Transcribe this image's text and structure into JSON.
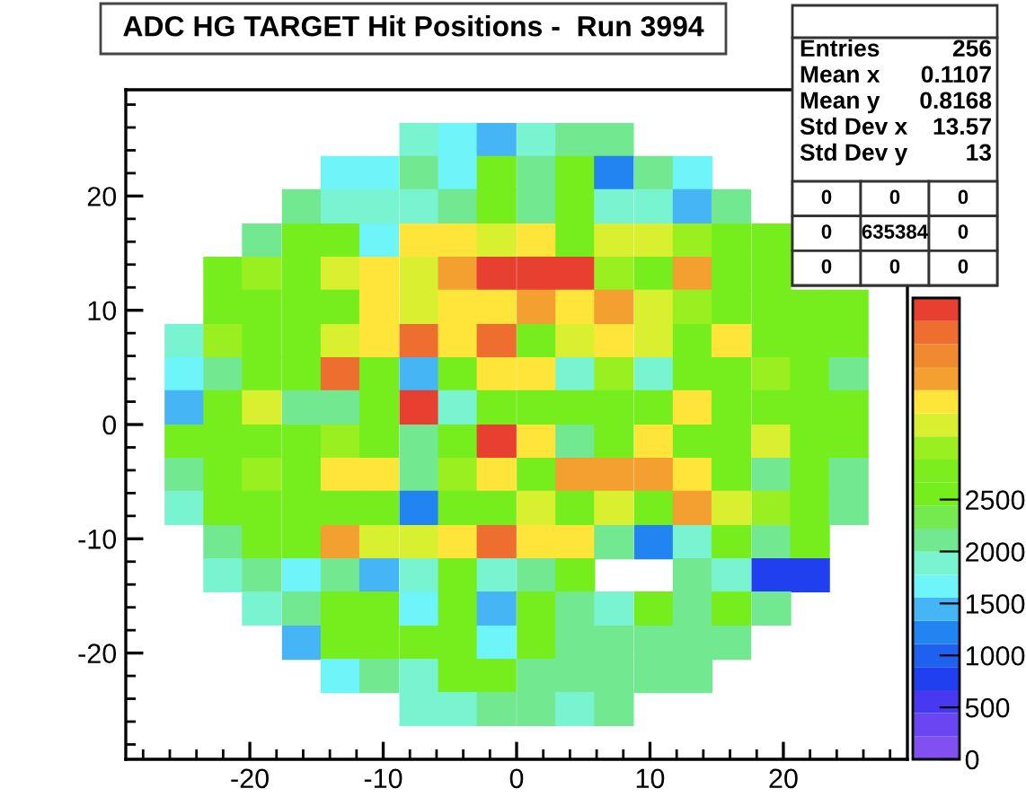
{
  "chart_data": {
    "type": "scatter",
    "title": "ADC HG TARGET Hit Positions -  Run 3994",
    "marker": "square",
    "xlim": [
      -29.3,
      29.3
    ],
    "ylim": [
      -29.3,
      29.3
    ],
    "xticks": [
      -20,
      -10,
      0,
      10,
      20
    ],
    "yticks": [
      -20,
      -10,
      0,
      10,
      20
    ],
    "clim": [
      0,
      4440
    ],
    "cticks": [
      0,
      500,
      1000,
      1500,
      2000,
      2500
    ],
    "x": [
      -7.3,
      -4.4,
      -1.5,
      1.5,
      4.4,
      7.3,
      -13.2,
      -10.3,
      -7.3,
      -4.4,
      -1.5,
      1.5,
      4.4,
      7.3,
      10.3,
      13.2,
      -16.1,
      -13.2,
      -10.3,
      -7.3,
      -4.4,
      -1.5,
      1.5,
      4.4,
      7.3,
      10.3,
      13.2,
      16.1,
      -19.1,
      -16.1,
      -13.2,
      -10.3,
      -7.3,
      -4.4,
      -1.5,
      1.5,
      4.4,
      7.3,
      10.3,
      13.2,
      16.1,
      19.1,
      -22.0,
      -19.1,
      -16.1,
      -13.2,
      -10.3,
      -7.3,
      -4.4,
      -1.5,
      1.5,
      4.4,
      7.3,
      10.3,
      13.2,
      16.1,
      19.1,
      -22.0,
      -19.1,
      -16.1,
      -13.2,
      -10.3,
      -7.3,
      -4.4,
      -1.5,
      1.5,
      4.4,
      7.3,
      10.3,
      13.2,
      16.1,
      19.1,
      22.0,
      24.9,
      -24.9,
      -22.0,
      -19.1,
      -16.1,
      -13.2,
      -10.3,
      -7.3,
      -4.4,
      -1.5,
      1.5,
      4.4,
      7.3,
      10.3,
      13.2,
      16.1,
      19.1,
      22.0,
      24.9,
      -24.9,
      -22.0,
      -19.1,
      -16.1,
      -13.2,
      -10.3,
      -7.3,
      -4.4,
      -1.5,
      1.5,
      4.4,
      7.3,
      10.3,
      13.2,
      16.1,
      19.1,
      22.0,
      24.9,
      -24.9,
      -22.0,
      -19.1,
      -16.1,
      -13.2,
      -10.3,
      -7.3,
      -4.4,
      -1.5,
      1.5,
      4.4,
      7.3,
      10.3,
      13.2,
      16.1,
      19.1,
      22.0,
      24.9,
      -24.9,
      -22.0,
      -19.1,
      -16.1,
      -13.2,
      -10.3,
      -7.3,
      -4.4,
      -1.5,
      1.5,
      4.4,
      7.3,
      10.3,
      13.2,
      16.1,
      19.1,
      22.0,
      24.9,
      -24.9,
      -22.0,
      -19.1,
      -16.1,
      -13.2,
      -10.3,
      -7.3,
      -4.4,
      -1.5,
      1.5,
      4.4,
      7.3,
      10.3,
      13.2,
      16.1,
      19.1,
      22.0,
      24.9,
      -24.9,
      -22.0,
      -19.1,
      -16.1,
      -13.2,
      -10.3,
      -7.3,
      -4.4,
      -1.5,
      1.5,
      4.4,
      7.3,
      10.3,
      13.2,
      16.1,
      19.1,
      22.0,
      24.9,
      -22.0,
      -19.1,
      -16.1,
      -13.2,
      -10.3,
      -7.3,
      -4.4,
      -1.5,
      1.5,
      4.4,
      7.3,
      10.3,
      13.2,
      16.1,
      19.1,
      22.0,
      -22.0,
      -19.1,
      -16.1,
      -13.2,
      -10.3,
      -7.3,
      -4.4,
      -1.5,
      1.5,
      4.4,
      13.2,
      16.1,
      19.1,
      22.0,
      -19.1,
      -16.1,
      -13.2,
      -10.3,
      -7.3,
      -4.4,
      -1.5,
      1.5,
      4.4,
      7.3,
      10.3,
      13.2,
      16.1,
      19.1,
      -16.1,
      -13.2,
      -10.3,
      -7.3,
      -4.4,
      -1.5,
      1.5,
      4.4,
      7.3,
      10.3,
      13.2,
      16.1,
      -13.2,
      -10.3,
      -7.3,
      -4.4,
      -1.5,
      1.5,
      4.4,
      7.3,
      10.3,
      13.2,
      -7.3,
      -4.4,
      -1.5,
      1.5,
      4.4,
      7.3
    ],
    "values": [
      24.9,
      24.9,
      24.9,
      24.9,
      24.9,
      24.9,
      22.0,
      22.0,
      22.0,
      22.0,
      22.0,
      22.0,
      22.0,
      22.0,
      22.0,
      22.0,
      19.1,
      19.1,
      19.1,
      19.1,
      19.1,
      19.1,
      19.1,
      19.1,
      19.1,
      19.1,
      19.1,
      19.1,
      16.1,
      16.1,
      16.1,
      16.1,
      16.1,
      16.1,
      16.1,
      16.1,
      16.1,
      16.1,
      16.1,
      16.1,
      16.1,
      16.1,
      13.2,
      13.2,
      13.2,
      13.2,
      13.2,
      13.2,
      13.2,
      13.2,
      13.2,
      13.2,
      13.2,
      13.2,
      13.2,
      13.2,
      13.2,
      10.3,
      10.3,
      10.3,
      10.3,
      10.3,
      10.3,
      10.3,
      10.3,
      10.3,
      10.3,
      10.3,
      10.3,
      10.3,
      10.3,
      10.3,
      10.3,
      10.3,
      7.3,
      7.3,
      7.3,
      7.3,
      7.3,
      7.3,
      7.3,
      7.3,
      7.3,
      7.3,
      7.3,
      7.3,
      7.3,
      7.3,
      7.3,
      7.3,
      7.3,
      7.3,
      4.4,
      4.4,
      4.4,
      4.4,
      4.4,
      4.4,
      4.4,
      4.4,
      4.4,
      4.4,
      4.4,
      4.4,
      4.4,
      4.4,
      4.4,
      4.4,
      4.4,
      4.4,
      1.5,
      1.5,
      1.5,
      1.5,
      1.5,
      1.5,
      1.5,
      1.5,
      1.5,
      1.5,
      1.5,
      1.5,
      1.5,
      1.5,
      1.5,
      1.5,
      1.5,
      1.5,
      -1.5,
      -1.5,
      -1.5,
      -1.5,
      -1.5,
      -1.5,
      -1.5,
      -1.5,
      -1.5,
      -1.5,
      -1.5,
      -1.5,
      -1.5,
      -1.5,
      -1.5,
      -1.5,
      -1.5,
      -1.5,
      -4.4,
      -4.4,
      -4.4,
      -4.4,
      -4.4,
      -4.4,
      -4.4,
      -4.4,
      -4.4,
      -4.4,
      -4.4,
      -4.4,
      -4.4,
      -4.4,
      -4.4,
      -4.4,
      -4.4,
      -4.4,
      -7.3,
      -7.3,
      -7.3,
      -7.3,
      -7.3,
      -7.3,
      -7.3,
      -7.3,
      -7.3,
      -7.3,
      -7.3,
      -7.3,
      -7.3,
      -7.3,
      -7.3,
      -7.3,
      -7.3,
      -7.3,
      -10.3,
      -10.3,
      -10.3,
      -10.3,
      -10.3,
      -10.3,
      -10.3,
      -10.3,
      -10.3,
      -10.3,
      -10.3,
      -10.3,
      -10.3,
      -10.3,
      -10.3,
      -10.3,
      -13.2,
      -13.2,
      -13.2,
      -13.2,
      -13.2,
      -13.2,
      -13.2,
      -13.2,
      -13.2,
      -13.2,
      -13.2,
      -13.2,
      -13.2,
      -13.2,
      -16.1,
      -16.1,
      -16.1,
      -16.1,
      -16.1,
      -16.1,
      -16.1,
      -16.1,
      -16.1,
      -16.1,
      -16.1,
      -16.1,
      -16.1,
      -16.1,
      -19.1,
      -19.1,
      -19.1,
      -19.1,
      -19.1,
      -19.1,
      -19.1,
      -19.1,
      -19.1,
      -19.1,
      -19.1,
      -19.1,
      -22.0,
      -22.0,
      -22.0,
      -22.0,
      -22.0,
      -22.0,
      -22.0,
      -22.0,
      -22.0,
      -22.0,
      -24.9,
      -24.9,
      -24.9,
      -24.9,
      -24.9,
      -24.9
    ],
    "cvalues": [
      1900,
      1650,
      1400,
      1900,
      2100,
      2100,
      1650,
      1650,
      2100,
      1650,
      2550,
      2100,
      2550,
      1200,
      2100,
      1650,
      2100,
      1900,
      1900,
      1900,
      2100,
      2550,
      2100,
      2550,
      1900,
      1900,
      1400,
      2100,
      2100,
      2550,
      2550,
      1650,
      3450,
      3450,
      3200,
      3450,
      2550,
      3200,
      3200,
      3000,
      2550,
      2550,
      2550,
      3000,
      2550,
      3200,
      3450,
      3200,
      3650,
      4300,
      4300,
      4300,
      3000,
      2550,
      3650,
      2550,
      2550,
      2550,
      2550,
      2550,
      2550,
      3450,
      3200,
      3450,
      3450,
      3650,
      3450,
      3650,
      3200,
      3000,
      2550,
      2550,
      2550,
      2550,
      1900,
      3000,
      2550,
      2550,
      3200,
      3450,
      4100,
      3450,
      4100,
      2550,
      3200,
      3450,
      3200,
      2550,
      3450,
      2550,
      2550,
      2550,
      1650,
      2100,
      2550,
      2550,
      4100,
      2550,
      1400,
      2550,
      3450,
      3450,
      1900,
      3000,
      1900,
      2550,
      2550,
      3000,
      2550,
      2100,
      1400,
      2550,
      3200,
      2100,
      2100,
      2550,
      4300,
      1900,
      2550,
      2550,
      2550,
      2550,
      2550,
      3450,
      2550,
      2550,
      2550,
      2550,
      2550,
      2550,
      2550,
      2550,
      3000,
      2550,
      2100,
      2550,
      4300,
      3450,
      2100,
      2550,
      3450,
      2550,
      2550,
      3200,
      2550,
      2550,
      2100,
      2550,
      3000,
      2550,
      3450,
      3450,
      2100,
      3000,
      3450,
      2550,
      3650,
      3650,
      3650,
      3450,
      2550,
      2100,
      2550,
      2100,
      1900,
      2550,
      2550,
      2550,
      2550,
      2550,
      1200,
      2550,
      2550,
      3200,
      2550,
      3200,
      2550,
      3650,
      3200,
      3000,
      2550,
      2100,
      2100,
      2550,
      2550,
      3650,
      3200,
      3200,
      3450,
      4100,
      3450,
      3450,
      2100,
      1200,
      1900,
      2550,
      2100,
      2550,
      1900,
      2100,
      1650,
      2100,
      1400,
      1900,
      2550,
      1900,
      2100,
      2550,
      2100,
      1900,
      750,
      750,
      1900,
      2100,
      2550,
      2550,
      1650,
      2550,
      1400,
      2550,
      2100,
      1900,
      2550,
      2100,
      2550,
      2100,
      1400,
      2550,
      2550,
      2550,
      2550,
      1650,
      2550,
      2100,
      2100,
      2100,
      2100,
      2100,
      1650,
      2100,
      1900,
      2550,
      2550,
      2100,
      2100,
      2100,
      2100,
      2100,
      1900,
      1900,
      2100,
      2100,
      1900,
      2100
    ],
    "annotations": [
      "Entries",
      "256",
      "Mean x",
      "0.1107",
      "Mean y",
      "0.8168",
      "Std Dev x",
      "13.57",
      "Std Dev y",
      "13",
      "0",
      "0",
      "0",
      "0",
      "635384",
      "0",
      "0",
      "0",
      "0"
    ]
  }
}
